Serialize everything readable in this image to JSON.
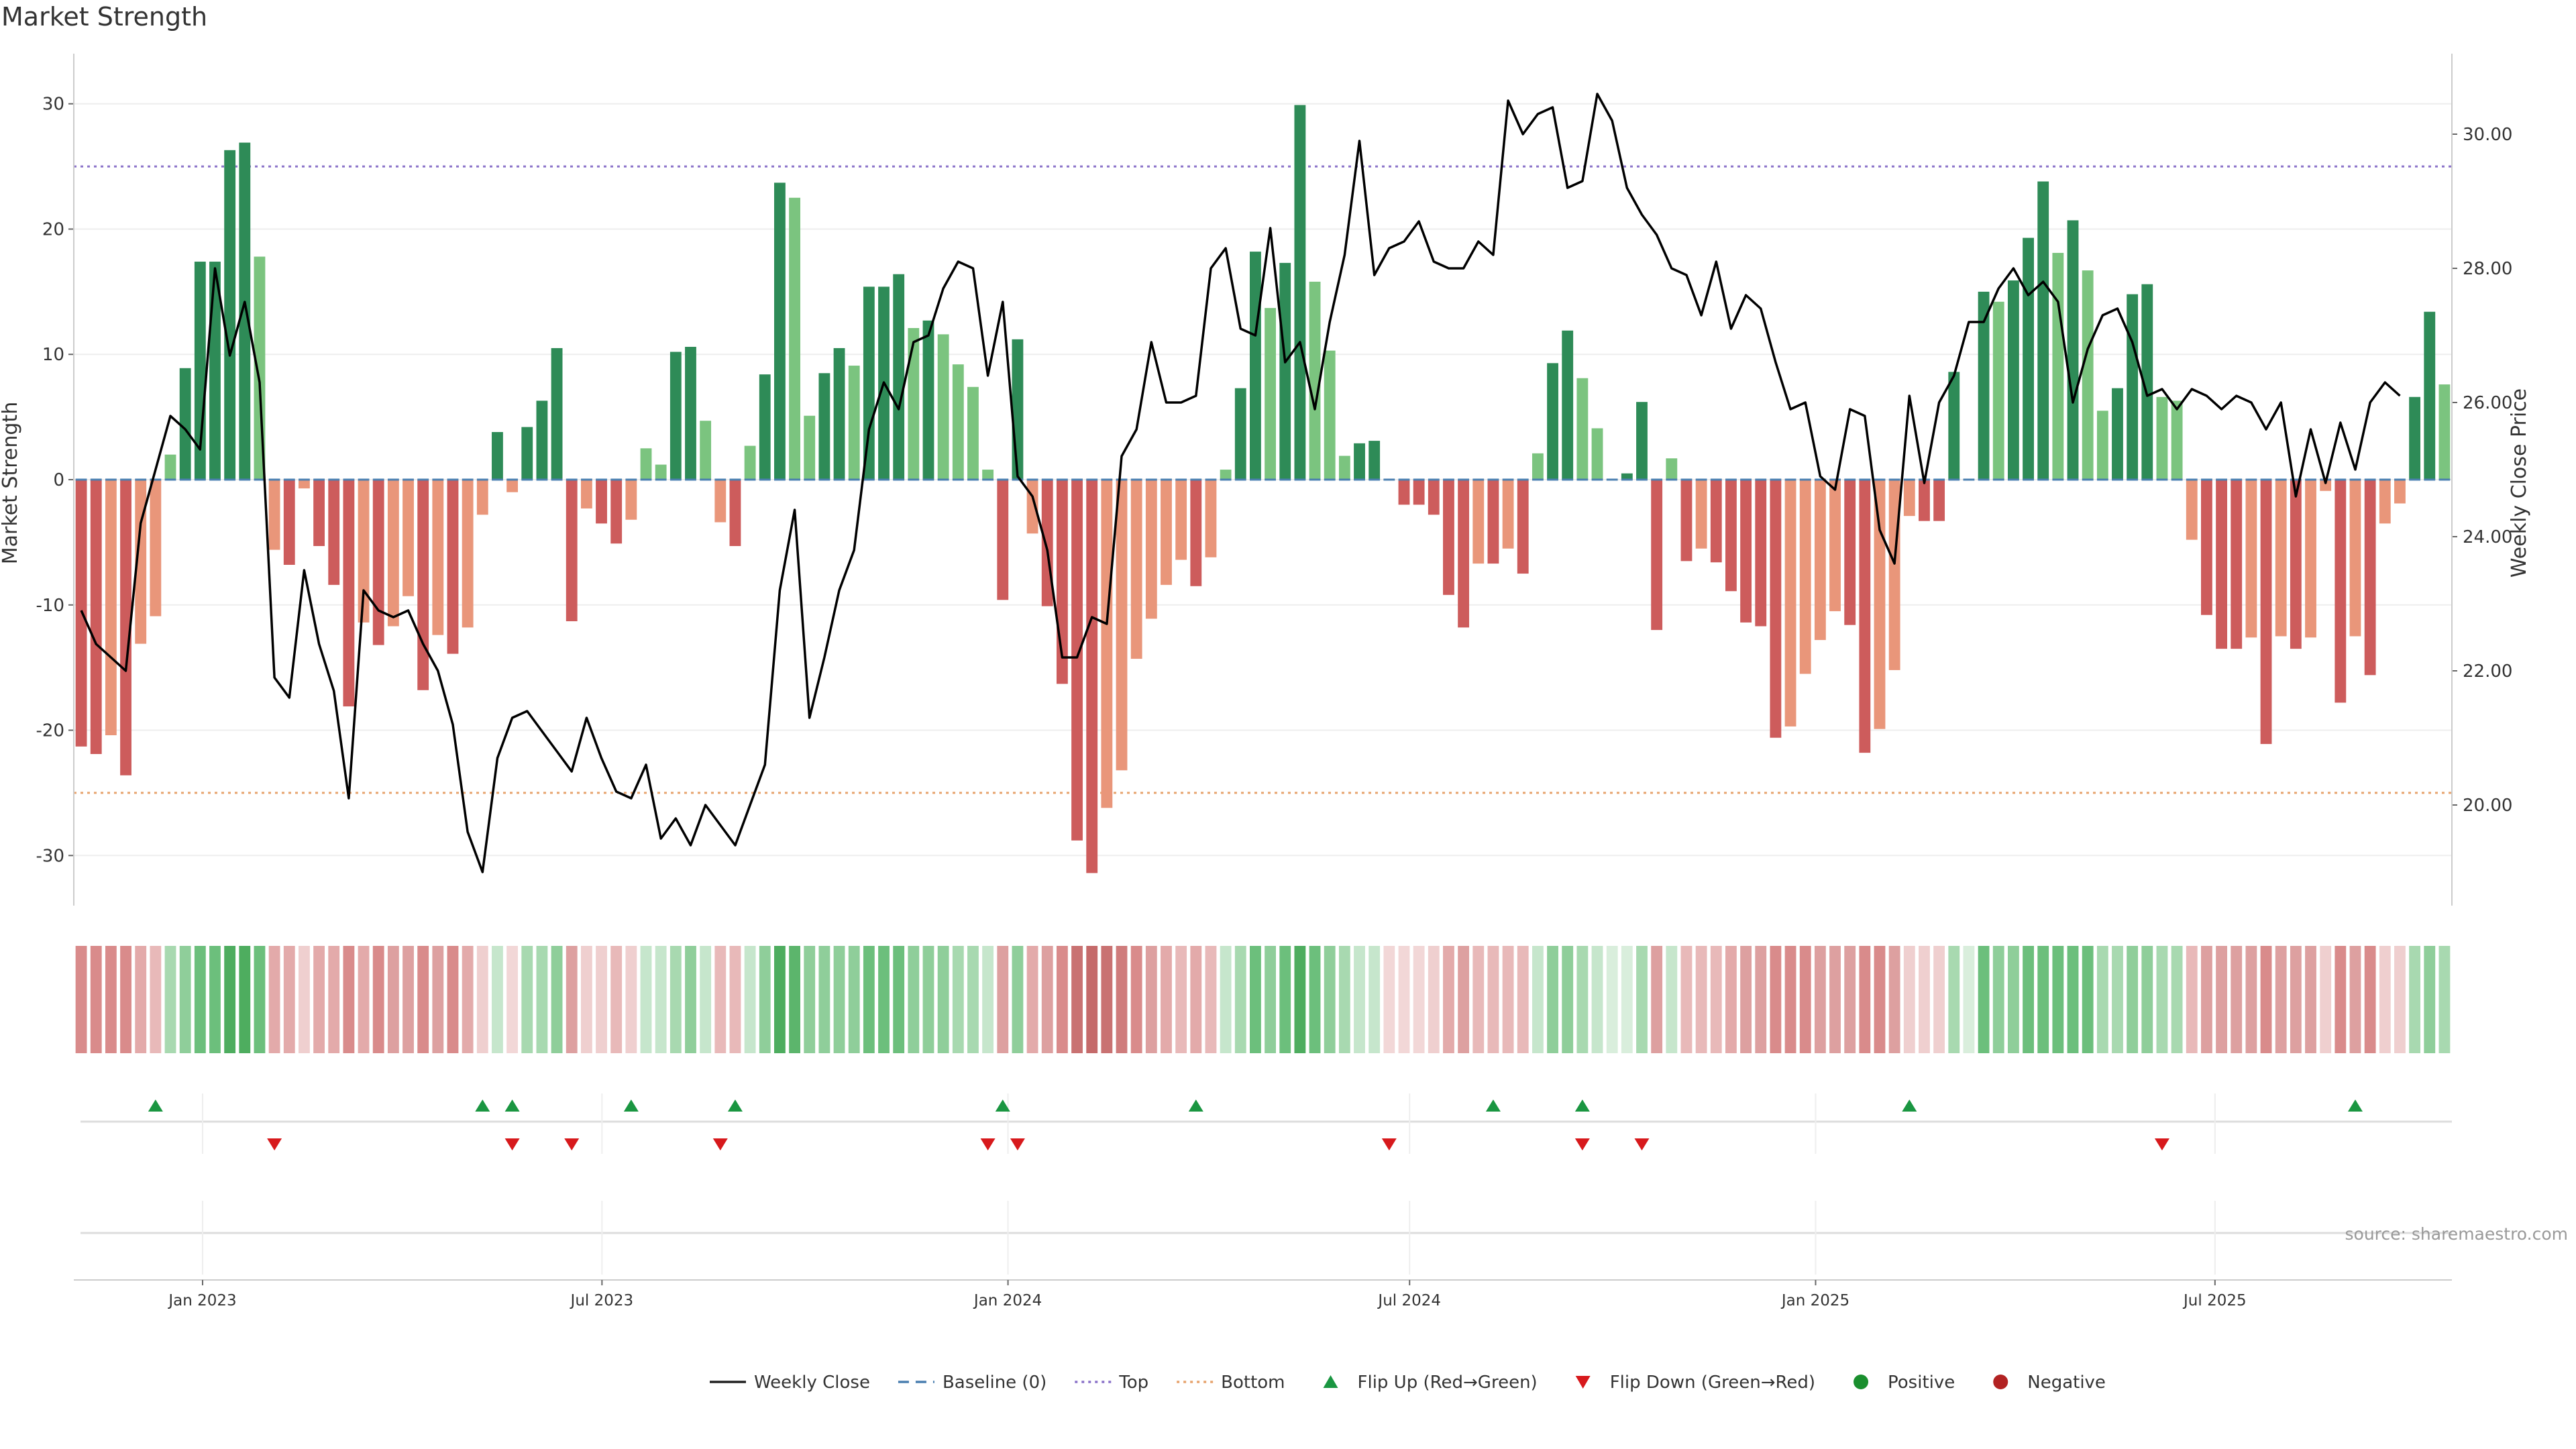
{
  "chart_data": {
    "type": "bar",
    "title": "Market Strength",
    "ylabel_left": "Market Strength",
    "ylabel_right": "Weekly Close Price",
    "ylim_left": [
      -34,
      34
    ],
    "ylim_right": [
      18.5,
      31.2
    ],
    "yticks_left": [
      -30,
      -20,
      -10,
      0,
      10,
      20,
      30
    ],
    "yticks_right": [
      "20.00",
      "22.00",
      "24.00",
      "26.00",
      "28.00",
      "30.00"
    ],
    "yticks_right_values": [
      20,
      22,
      24,
      26,
      28,
      30
    ],
    "x_start_date": "2022-11-07",
    "x_end_date": "2025-10-13",
    "x_ticks": [
      {
        "date": "2023-01-01",
        "label": "Jan 2023"
      },
      {
        "date": "2023-07-01",
        "label": "Jul 2023"
      },
      {
        "date": "2024-01-01",
        "label": "Jan 2024"
      },
      {
        "date": "2024-07-01",
        "label": "Jul 2024"
      },
      {
        "date": "2025-01-01",
        "label": "Jan 2025"
      },
      {
        "date": "2025-07-01",
        "label": "Jul 2025"
      }
    ],
    "reference_lines": {
      "top": 25,
      "bottom": -25,
      "baseline": 0
    },
    "strength": [
      -21.3,
      -21.9,
      -20.4,
      -23.6,
      -13.1,
      -10.9,
      2,
      8.9,
      17.4,
      17.4,
      26.3,
      26.9,
      17.8,
      -5.6,
      -6.8,
      -0.7,
      -5.3,
      -8.4,
      -18.1,
      -11.4,
      -13.2,
      -11.7,
      -9.3,
      -16.8,
      -12.4,
      -13.9,
      -11.8,
      -2.8,
      3.8,
      -1,
      4.2,
      6.3,
      10.5,
      -11.3,
      -2.3,
      -3.5,
      -5.1,
      -3.2,
      2.5,
      1.2,
      10.2,
      10.6,
      4.7,
      -3.4,
      -5.3,
      2.7,
      8.4,
      23.7,
      22.5,
      5.1,
      8.5,
      10.5,
      9.1,
      15.4,
      15.4,
      16.4,
      12.1,
      12.7,
      11.6,
      9.2,
      7.4,
      0.8,
      -9.6,
      11.2,
      -4.3,
      -10.1,
      -16.3,
      -28.8,
      -31.4,
      -26.2,
      -23.2,
      -14.3,
      -11.1,
      -8.4,
      -6.4,
      -8.5,
      -6.2,
      0.8,
      7.3,
      18.2,
      13.7,
      17.3,
      29.9,
      15.8,
      10.3,
      1.9,
      2.9,
      3.1,
      0,
      -2,
      -2,
      -2.8,
      -9.2,
      -11.8,
      -6.7,
      -6.7,
      -5.5,
      -7.5,
      2.1,
      9.3,
      11.9,
      8.1,
      4.1,
      0,
      0.5,
      6.2,
      -12,
      1.7,
      -6.5,
      -5.5,
      -6.6,
      -8.9,
      -11.4,
      -11.7,
      -20.6,
      -19.7,
      -15.5,
      -12.8,
      -10.5,
      -11.6,
      -21.8,
      -19.9,
      -15.2,
      -2.9,
      -3.3,
      -3.3,
      8.6,
      0,
      15,
      14.2,
      15.9,
      19.3,
      23.8,
      18.1,
      20.7,
      16.7,
      5.5,
      7.3,
      14.8,
      15.6,
      6.6,
      6.3,
      -4.8,
      -10.8,
      -13.5,
      -13.5,
      -12.6,
      -21.1,
      -12.5,
      -13.5,
      -12.6,
      -0.9,
      -17.8,
      -12.5,
      -15.6,
      -3.5,
      -1.9,
      6.6,
      13.4,
      7.6
    ],
    "weekly_close": [
      22.9,
      22.4,
      22.2,
      22,
      24.2,
      25,
      25.8,
      25.6,
      25.3,
      28,
      26.7,
      27.5,
      26.3,
      21.9,
      21.6,
      23.5,
      22.4,
      21.7,
      20.1,
      23.2,
      22.9,
      22.8,
      22.9,
      22.4,
      22,
      21.2,
      19.6,
      19,
      20.7,
      21.3,
      21.4,
      21.1,
      20.8,
      20.5,
      21.3,
      20.7,
      20.2,
      20.1,
      20.6,
      19.5,
      19.8,
      19.4,
      20,
      19.7,
      19.4,
      20,
      20.6,
      23.2,
      24.4,
      21.3,
      22.2,
      23.2,
      23.8,
      25.6,
      26.3,
      25.9,
      26.9,
      27,
      27.7,
      28.1,
      28,
      26.4,
      27.5,
      24.9,
      24.6,
      23.8,
      22.2,
      22.2,
      22.8,
      22.7,
      25.2,
      25.6,
      26.9,
      26,
      26,
      26.1,
      28,
      28.3,
      27.1,
      27,
      28.6,
      26.6,
      26.9,
      25.9,
      27.2,
      28.2,
      29.9,
      27.9,
      28.3,
      28.4,
      28.7,
      28.1,
      28,
      28,
      28.4,
      28.2,
      30.5,
      30,
      30.3,
      30.4,
      29.2,
      29.3,
      30.6,
      30.2,
      29.2,
      28.8,
      28.5,
      28,
      27.9,
      27.3,
      28.1,
      27.1,
      27.6,
      27.4,
      26.6,
      25.9,
      26,
      24.9,
      24.7,
      25.9,
      25.8,
      24.1,
      23.6,
      26.1,
      24.8,
      26,
      26.4,
      27.2,
      27.2,
      27.7,
      28,
      27.6,
      27.8,
      27.5,
      26,
      26.8,
      27.3,
      27.4,
      26.9,
      26.1,
      26.2,
      25.9,
      26.2,
      26.1,
      25.9,
      26.1,
      26,
      25.6,
      26,
      24.6,
      25.6,
      24.8,
      25.7,
      25,
      26,
      26.3,
      26.1
    ],
    "heat_strip_colors": [
      "#d98b8b",
      "#d98b8b",
      "#d98b8b",
      "#d98b8b",
      "#e3aaaa",
      "#e8b9b9",
      "#a8d9b0",
      "#8fce9a",
      "#6cbf7c",
      "#6cbf7c",
      "#4ead5f",
      "#4ead5f",
      "#6cbf7c",
      "#e3aaaa",
      "#e3aaaa",
      "#efcfcf",
      "#e3aaaa",
      "#e3aaaa",
      "#d98b8b",
      "#e3aaaa",
      "#d98b8b",
      "#dda0a0",
      "#dda0a0",
      "#d98b8b",
      "#dda0a0",
      "#d98b8b",
      "#e3aaaa",
      "#efcfcf",
      "#c6e6cc",
      "#f2d7d7",
      "#a8d9b0",
      "#a8d9b0",
      "#8fce9a",
      "#dda0a0",
      "#efcfcf",
      "#efcfcf",
      "#e8b9b9",
      "#efcfcf",
      "#c6e6cc",
      "#c6e6cc",
      "#a8d9b0",
      "#8fce9a",
      "#c6e6cc",
      "#e8b9b9",
      "#e8b9b9",
      "#c6e6cc",
      "#8fce9a",
      "#4ead5f",
      "#5cb56c",
      "#8fce9a",
      "#8fce9a",
      "#8fce9a",
      "#8fce9a",
      "#6cbf7c",
      "#6cbf7c",
      "#6cbf7c",
      "#8fce9a",
      "#8fce9a",
      "#8fce9a",
      "#a8d9b0",
      "#a8d9b0",
      "#c6e6cc",
      "#dda0a0",
      "#8fce9a",
      "#e3aaaa",
      "#dda0a0",
      "#d98b8b",
      "#c97272",
      "#c56a6a",
      "#c97272",
      "#cf7c7c",
      "#d98b8b",
      "#dda0a0",
      "#e3aaaa",
      "#e8b9b9",
      "#e3aaaa",
      "#e8b9b9",
      "#c6e6cc",
      "#a8d9b0",
      "#6cbf7c",
      "#8fce9a",
      "#6cbf7c",
      "#4ead5f",
      "#6cbf7c",
      "#8fce9a",
      "#a8d9b0",
      "#c6e6cc",
      "#c6e6cc",
      "#f2d7d7",
      "#f2d7d7",
      "#f2d7d7",
      "#efcfcf",
      "#e3aaaa",
      "#dda0a0",
      "#e8b9b9",
      "#e8b9b9",
      "#e8b9b9",
      "#e8b9b9",
      "#c6e6cc",
      "#8fce9a",
      "#8fce9a",
      "#a8d9b0",
      "#c6e6cc",
      "#d9eedc",
      "#d9eedc",
      "#a8d9b0",
      "#dda0a0",
      "#c6e6cc",
      "#e8b9b9",
      "#e8b9b9",
      "#e8b9b9",
      "#e3aaaa",
      "#dda0a0",
      "#dda0a0",
      "#d98b8b",
      "#d98b8b",
      "#d98b8b",
      "#dda0a0",
      "#dda0a0",
      "#dda0a0",
      "#d98b8b",
      "#d98b8b",
      "#dda0a0",
      "#efcfcf",
      "#efcfcf",
      "#efcfcf",
      "#a8d9b0",
      "#d9eedc",
      "#6cbf7c",
      "#8fce9a",
      "#8fce9a",
      "#6cbf7c",
      "#6cbf7c",
      "#6cbf7c",
      "#6cbf7c",
      "#6cbf7c",
      "#a8d9b0",
      "#a8d9b0",
      "#8fce9a",
      "#8fce9a",
      "#a8d9b0",
      "#a8d9b0",
      "#e8b9b9",
      "#dda0a0",
      "#dda0a0",
      "#dda0a0",
      "#dda0a0",
      "#d98b8b",
      "#dda0a0",
      "#dda0a0",
      "#dda0a0",
      "#efcfcf",
      "#d98b8b",
      "#dda0a0",
      "#d98b8b",
      "#efcfcf",
      "#efcfcf",
      "#a8d9b0",
      "#8fce9a",
      "#a8d9b0"
    ],
    "flip_up_indices": [
      5,
      27,
      29,
      37,
      44,
      62,
      75,
      95,
      101,
      123,
      153
    ],
    "flip_down_indices": [
      13,
      29,
      33,
      43,
      61,
      63,
      88,
      101,
      105,
      140
    ],
    "colors": {
      "strong_green": "#2e8b57",
      "light_green": "#7bc47f",
      "strong_red": "#cd5c5c",
      "light_red": "#e9967a",
      "top_line": "#8a72c9",
      "bottom_line": "#e7a46e",
      "baseline": "#4a7fb0",
      "close_line": "#000000",
      "flip_up": "#1a9641",
      "flip_down": "#d7191c",
      "positive": "#1a8f2e",
      "negative": "#b22222"
    },
    "legend": [
      {
        "label": "Weekly Close",
        "kind": "line-solid",
        "color": "#222222"
      },
      {
        "label": "Baseline (0)",
        "kind": "line-dash",
        "color": "#4a7fb0"
      },
      {
        "label": "Top",
        "kind": "line-dot",
        "color": "#8a72c9"
      },
      {
        "label": "Bottom",
        "kind": "line-dot",
        "color": "#e7a46e"
      },
      {
        "label": "Flip Up (Red→Green)",
        "kind": "tri-up",
        "color": "#1a9641"
      },
      {
        "label": "Flip Down (Green→Red)",
        "kind": "tri-down",
        "color": "#d7191c"
      },
      {
        "label": "Positive",
        "kind": "dot",
        "color": "#1a8f2e"
      },
      {
        "label": "Negative",
        "kind": "dot",
        "color": "#b22222"
      }
    ],
    "source": "source: sharemaestro.com"
  }
}
